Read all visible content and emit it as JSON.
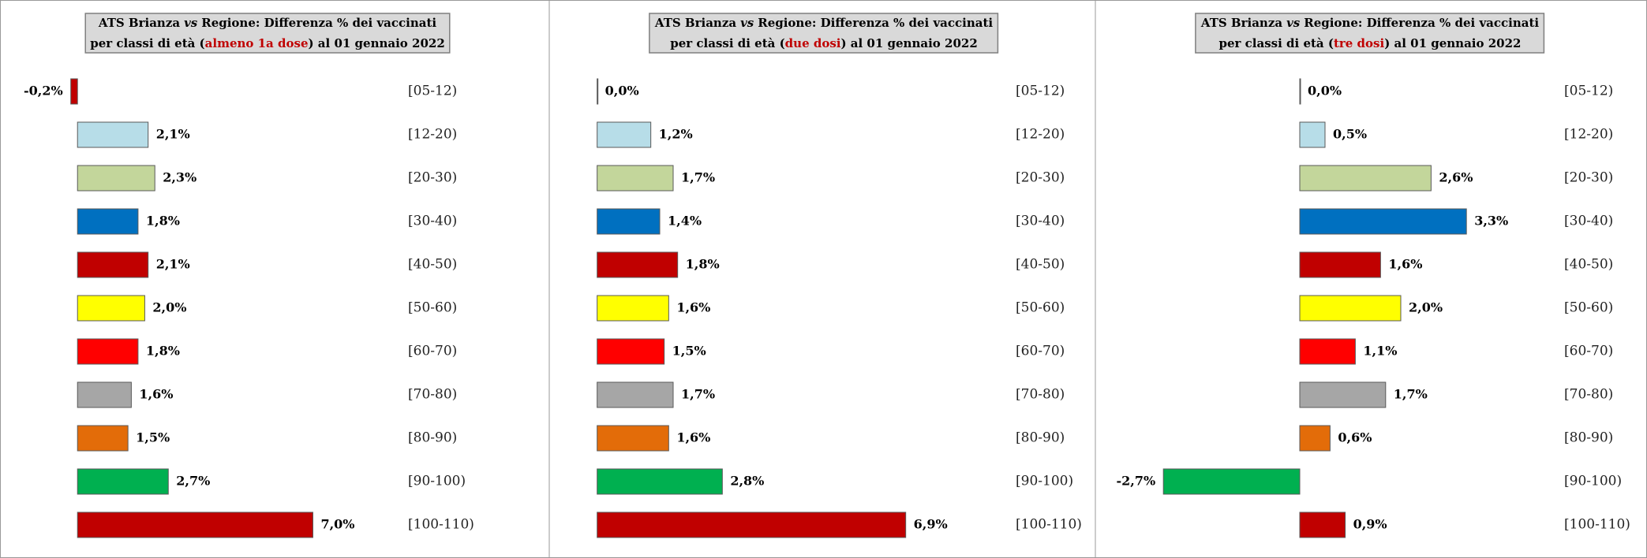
{
  "chart_data": [
    {
      "type": "bar",
      "orientation": "horizontal",
      "title": [
        [
          {
            "text": "ATS Brianza"
          },
          {
            "text": "vs",
            "style": "italic"
          },
          {
            "text": "Regione: Differenza % dei vaccinati"
          }
        ],
        [
          {
            "text": "per classi di età ("
          },
          {
            "text": "almeno 1a dose",
            "color": "#c00000"
          },
          {
            "text": ") al 01 gennaio 2022"
          }
        ]
      ],
      "categories": [
        "[05-12)",
        "[12-20)",
        "[20-30)",
        "[30-40)",
        "[40-50)",
        "[50-60)",
        "[60-70)",
        "[70-80)",
        "[80-90)",
        "[90-100)",
        "[100-110)"
      ],
      "values": [
        -0.2,
        2.1,
        2.3,
        1.8,
        2.1,
        2.0,
        1.8,
        1.6,
        1.5,
        2.7,
        7.0
      ],
      "value_labels": [
        "-0,2%",
        "2,1%",
        "2,3%",
        "1,8%",
        "2,1%",
        "2,0%",
        "1,8%",
        "1,6%",
        "1,5%",
        "2,7%",
        "7,0%"
      ],
      "colors": [
        "#c00000",
        "#b7dde8",
        "#c3d69b",
        "#0070c0",
        "#c00000",
        "#ffff00",
        "#ff0000",
        "#a6a6a6",
        "#e36c09",
        "#00b050",
        "#c00000"
      ],
      "xlim": [
        -2,
        9.5
      ]
    },
    {
      "type": "bar",
      "orientation": "horizontal",
      "title": [
        [
          {
            "text": "ATS Brianza"
          },
          {
            "text": "vs",
            "style": "italic"
          },
          {
            "text": "Regione: Differenza % dei vaccinati"
          }
        ],
        [
          {
            "text": "per classi di età ("
          },
          {
            "text": "due dosi",
            "color": "#c00000"
          },
          {
            "text": ") al 01 gennaio 2022"
          }
        ]
      ],
      "categories": [
        "[05-12)",
        "[12-20)",
        "[20-30)",
        "[30-40)",
        "[40-50)",
        "[50-60)",
        "[60-70)",
        "[70-80)",
        "[80-90)",
        "[90-100)",
        "[100-110)"
      ],
      "values": [
        0.0,
        1.2,
        1.7,
        1.4,
        1.8,
        1.6,
        1.5,
        1.7,
        1.6,
        2.8,
        6.9
      ],
      "value_labels": [
        "0,0%",
        "1,2%",
        "1,7%",
        "1,4%",
        "1,8%",
        "1,6%",
        "1,5%",
        "1,7%",
        "1,6%",
        "2,8%",
        "6,9%"
      ],
      "colors": [
        "#c00000",
        "#b7dde8",
        "#c3d69b",
        "#0070c0",
        "#c00000",
        "#ffff00",
        "#ff0000",
        "#a6a6a6",
        "#e36c09",
        "#00b050",
        "#c00000"
      ],
      "xlim": [
        -1,
        8
      ]
    },
    {
      "type": "bar",
      "orientation": "horizontal",
      "title": [
        [
          {
            "text": "ATS Brianza"
          },
          {
            "text": "vs",
            "style": "italic"
          },
          {
            "text": "Regione: Differenza % dei vaccinati"
          }
        ],
        [
          {
            "text": "per classi di età ("
          },
          {
            "text": "tre dosi",
            "color": "#c00000"
          },
          {
            "text": ") al 01 gennaio 2022"
          }
        ]
      ],
      "categories": [
        "[05-12)",
        "[12-20)",
        "[20-30)",
        "[30-40)",
        "[40-50)",
        "[50-60)",
        "[60-70)",
        "[70-80)",
        "[80-90)",
        "[90-100)",
        "[100-110)"
      ],
      "values": [
        0.0,
        0.5,
        2.6,
        3.3,
        1.6,
        2.0,
        1.1,
        1.7,
        0.6,
        -2.7,
        0.9
      ],
      "value_labels": [
        "0,0%",
        "0,5%",
        "2,6%",
        "3,3%",
        "1,6%",
        "2,0%",
        "1,1%",
        "1,7%",
        "0,6%",
        "-2,7%",
        "0,9%"
      ],
      "colors": [
        "#c00000",
        "#b7dde8",
        "#c3d69b",
        "#0070c0",
        "#c00000",
        "#ffff00",
        "#ff0000",
        "#a6a6a6",
        "#e36c09",
        "#00b050",
        "#c00000"
      ],
      "xlim": [
        -3,
        4.5
      ]
    }
  ]
}
